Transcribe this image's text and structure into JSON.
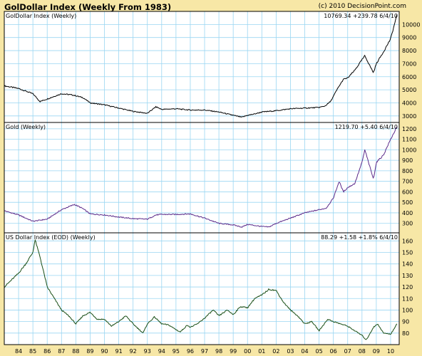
{
  "header": {
    "title": "GolDollar Index (Weekly From 1983)",
    "credit": "(c) 2010 DecisionPoint.com"
  },
  "chart_data": [
    {
      "type": "line",
      "title": "GolDollar Index (Weekly)",
      "readout": "10769.34 +239.78  6/4/10",
      "color": "#000000",
      "ylim": [
        2500,
        11000
      ],
      "yticks": [
        "3000",
        "4000",
        "5000",
        "6000",
        "7000",
        "8000",
        "9000",
        "10000"
      ],
      "ytick_values": [
        3000,
        4000,
        5000,
        6000,
        7000,
        8000,
        9000,
        10000
      ],
      "series": [
        {
          "x": [
            1983.0,
            1984.0,
            1985.0,
            1985.5,
            1986.0,
            1987.0,
            1987.8,
            1988.5,
            1989.0,
            1990.0,
            1991.0,
            1992.0,
            1993.0,
            1993.6,
            1994.0,
            1995.0,
            1996.0,
            1997.0,
            1998.0,
            1999.0,
            1999.6,
            2000.0,
            2000.5,
            2001.0,
            2002.0,
            2003.0,
            2004.0,
            2005.0,
            2005.4,
            2005.8,
            2006.3,
            2006.7,
            2007.0,
            2007.5,
            2008.0,
            2008.2,
            2008.8,
            2009.0,
            2009.5,
            2010.0,
            2010.45
          ],
          "values": [
            5300,
            5100,
            4700,
            4100,
            4300,
            4700,
            4600,
            4400,
            4000,
            3850,
            3600,
            3350,
            3200,
            3700,
            3500,
            3550,
            3450,
            3450,
            3300,
            3050,
            2900,
            3050,
            3150,
            3300,
            3400,
            3550,
            3600,
            3650,
            3750,
            4100,
            5100,
            5800,
            5900,
            6500,
            7300,
            7600,
            6300,
            7000,
            7900,
            8900,
            10769
          ]
        }
      ]
    },
    {
      "type": "line",
      "title": "Gold (Weekly)",
      "readout": "1219.70 +5.40  6/4/10",
      "color": "#5b2a8a",
      "ylim": [
        210,
        1260
      ],
      "yticks": [
        "300",
        "400",
        "500",
        "600",
        "700",
        "800",
        "900",
        "1000",
        "1100",
        "1200"
      ],
      "ytick_values": [
        300,
        400,
        500,
        600,
        700,
        800,
        900,
        1000,
        1100,
        1200
      ],
      "series": [
        {
          "x": [
            1983.0,
            1984.0,
            1985.0,
            1986.0,
            1987.0,
            1987.9,
            1988.5,
            1989.0,
            1990.0,
            1991.0,
            1992.0,
            1993.0,
            1993.6,
            1994.0,
            1995.0,
            1996.0,
            1997.0,
            1998.0,
            1999.0,
            1999.6,
            2000.0,
            2001.0,
            2001.5,
            2002.0,
            2003.0,
            2004.0,
            2005.0,
            2005.5,
            2006.0,
            2006.4,
            2006.7,
            2007.0,
            2007.5,
            2008.0,
            2008.2,
            2008.8,
            2009.0,
            2009.5,
            2010.0,
            2010.45
          ],
          "values": [
            420,
            380,
            320,
            340,
            430,
            480,
            440,
            390,
            380,
            360,
            345,
            340,
            380,
            385,
            385,
            390,
            350,
            300,
            285,
            265,
            290,
            270,
            265,
            300,
            350,
            400,
            430,
            445,
            540,
            700,
            600,
            640,
            680,
            880,
            1000,
            720,
            880,
            950,
            1100,
            1220
          ]
        }
      ]
    },
    {
      "type": "line",
      "title": "US Dollar Index (EOD) (Weekly)",
      "readout": "88.29 +1.58 +1.8%  6/4/10",
      "color": "#174d14",
      "ylim": [
        70,
        167
      ],
      "yticks": [
        "80",
        "90",
        "100",
        "110",
        "120",
        "130",
        "140",
        "150",
        "160"
      ],
      "ytick_values": [
        80,
        90,
        100,
        110,
        120,
        130,
        140,
        150,
        160
      ],
      "series": [
        {
          "x": [
            1983.0,
            1983.5,
            1984.0,
            1984.5,
            1985.0,
            1985.15,
            1985.5,
            1986.0,
            1986.5,
            1987.0,
            1987.5,
            1988.0,
            1988.5,
            1989.0,
            1989.5,
            1990.0,
            1990.5,
            1991.0,
            1991.5,
            1992.0,
            1992.7,
            1993.0,
            1993.5,
            1994.0,
            1994.5,
            1995.0,
            1995.3,
            1995.8,
            1996.0,
            1996.5,
            1997.0,
            1997.6,
            1998.0,
            1998.6,
            1999.0,
            1999.5,
            2000.0,
            2000.5,
            2001.0,
            2001.5,
            2002.0,
            2002.5,
            2003.0,
            2003.5,
            2004.0,
            2004.5,
            2005.0,
            2005.6,
            2006.0,
            2006.5,
            2007.0,
            2007.5,
            2008.0,
            2008.3,
            2008.8,
            2009.1,
            2009.5,
            2010.0,
            2010.45
          ],
          "values": [
            120,
            126,
            132,
            140,
            150,
            161,
            146,
            120,
            110,
            100,
            95,
            88,
            95,
            98,
            92,
            92,
            86,
            90,
            95,
            88,
            80,
            88,
            94,
            88,
            87,
            83,
            81,
            87,
            85,
            88,
            93,
            100,
            95,
            100,
            96,
            103,
            102,
            110,
            113,
            118,
            117,
            107,
            100,
            95,
            88,
            90,
            82,
            92,
            90,
            88,
            86,
            82,
            78,
            74,
            85,
            88,
            80,
            79,
            88
          ]
        }
      ]
    }
  ],
  "x_axis": {
    "range": [
      1983.0,
      2010.6
    ],
    "ticks": [
      1984,
      1985,
      1986,
      1987,
      1988,
      1989,
      1990,
      1991,
      1992,
      1993,
      1994,
      1995,
      1996,
      1997,
      1998,
      1999,
      2000,
      2001,
      2002,
      2003,
      2004,
      2005,
      2006,
      2007,
      2008,
      2009,
      2010
    ],
    "labels": [
      "84",
      "85",
      "86",
      "87",
      "88",
      "89",
      "90",
      "91",
      "92",
      "93",
      "94",
      "95",
      "96",
      "97",
      "98",
      "99",
      "00",
      "01",
      "02",
      "03",
      "04",
      "05",
      "06",
      "07",
      "08",
      "09",
      "10"
    ]
  },
  "colors": {
    "background": "#f7e7a6",
    "panel": "#ffffff",
    "grid": "#9ad6f2",
    "border": "#000000"
  }
}
